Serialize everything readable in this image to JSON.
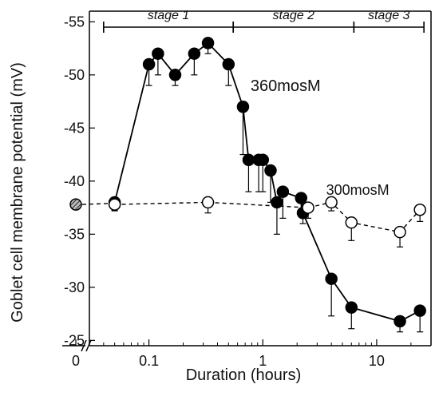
{
  "chart_data": {
    "type": "line",
    "title": "",
    "xlabel": "Duration (hours)",
    "ylabel": "Goblet cell membrane potential (mV)",
    "x_scale": "log",
    "x_break": true,
    "xlim": [
      0.03,
      30
    ],
    "ylim": [
      -24.5,
      -56
    ],
    "y_axis_inverted": true,
    "x_ticks": [
      {
        "value": 0,
        "label": "0",
        "baseline": true
      },
      {
        "value": 0.1,
        "label": "0.1"
      },
      {
        "value": 1,
        "label": "1"
      },
      {
        "value": 10,
        "label": "10"
      }
    ],
    "y_ticks": [
      -25,
      -30,
      -35,
      -40,
      -45,
      -50,
      -55
    ],
    "stages": [
      {
        "label": "stage 1",
        "from": 0.04,
        "to": 0.55
      },
      {
        "label": "stage 2",
        "from": 0.55,
        "to": 6.3
      },
      {
        "label": "stage 3",
        "from": 6.3,
        "to": 26
      }
    ],
    "baseline_point": {
      "x": 0,
      "y": -37.8
    },
    "series": [
      {
        "name": "360mosM",
        "style": "solid-filled",
        "x": [
          0.05,
          0.1,
          0.12,
          0.17,
          0.25,
          0.33,
          0.5,
          0.67,
          0.75,
          0.92,
          1.0,
          1.17,
          1.33,
          1.5,
          2.17,
          2.25,
          4.0,
          6.0,
          16.0,
          24.0
        ],
        "y": [
          -38,
          -51,
          -52,
          -50,
          -52,
          -53,
          -51,
          -47,
          -42,
          -42,
          -42,
          -41,
          -38,
          -39,
          -38.4,
          -37,
          -30.8,
          -28.1,
          -26.8,
          -27.8
        ],
        "error": [
          0.8,
          2.0,
          2.0,
          1.0,
          2.0,
          1.0,
          2.0,
          4.5,
          3.0,
          3.0,
          3.0,
          3.0,
          3.0,
          2.5,
          1.5,
          1.0,
          3.5,
          2.0,
          1.0,
          2.0
        ],
        "label_at": {
          "x": 0.78,
          "y": -48.5
        }
      },
      {
        "name": "300mosM",
        "style": "dashed-open",
        "x": [
          0.05,
          0.33,
          2.5,
          4.0,
          6.0,
          16.0,
          24.0
        ],
        "y": [
          -37.8,
          -38,
          -37.5,
          -38,
          -36.1,
          -35.2,
          -37.3
        ],
        "error": [
          0.5,
          1.0,
          1.0,
          0.8,
          1.7,
          1.4,
          1.1
        ],
        "label_at": {
          "x": 3.6,
          "y": -38.7
        }
      }
    ]
  }
}
